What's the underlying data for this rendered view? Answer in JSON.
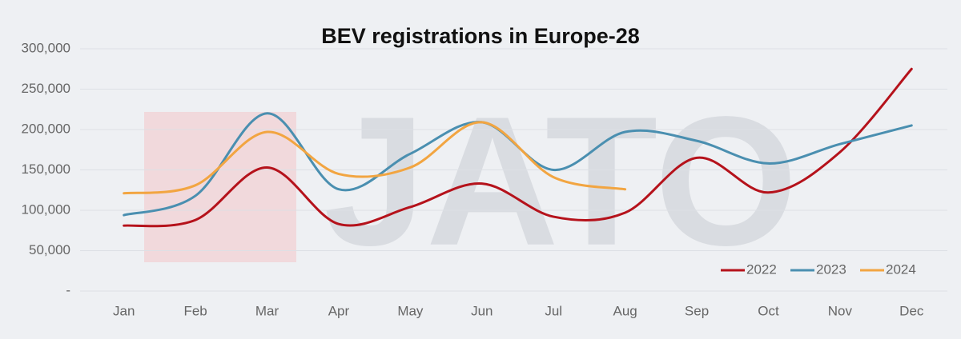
{
  "chart_data": {
    "type": "line",
    "title": "BEV registrations in Europe-28",
    "watermark": "JATO",
    "categories": [
      "Jan",
      "Feb",
      "Mar",
      "Apr",
      "May",
      "Jun",
      "Jul",
      "Aug",
      "Sep",
      "Oct",
      "Nov",
      "Dec"
    ],
    "series": [
      {
        "name": "2022",
        "color": "#b5121b",
        "values": [
          81000,
          88000,
          153000,
          83000,
          104000,
          133000,
          92000,
          97000,
          165000,
          122000,
          172000,
          275000
        ]
      },
      {
        "name": "2023",
        "color": "#4a8fb0",
        "values": [
          94000,
          118000,
          220000,
          126000,
          170000,
          209000,
          150000,
          197000,
          186000,
          158000,
          182000,
          205000
        ]
      },
      {
        "name": "2024",
        "color": "#f2a541",
        "values": [
          121000,
          131000,
          197000,
          145000,
          153000,
          209000,
          141000,
          126000,
          null,
          null,
          null,
          null
        ]
      }
    ],
    "ylim": [
      0,
      300000
    ],
    "yticks": [
      {
        "value": 0,
        "label": "-"
      },
      {
        "value": 50000,
        "label": "50,000"
      },
      {
        "value": 100000,
        "label": "100,000"
      },
      {
        "value": 150000,
        "label": "150,000"
      },
      {
        "value": 200000,
        "label": "200,000"
      },
      {
        "value": 250000,
        "label": "250,000"
      },
      {
        "value": 300000,
        "label": "300,000"
      }
    ],
    "grid": true,
    "legend": "bottom-right"
  }
}
